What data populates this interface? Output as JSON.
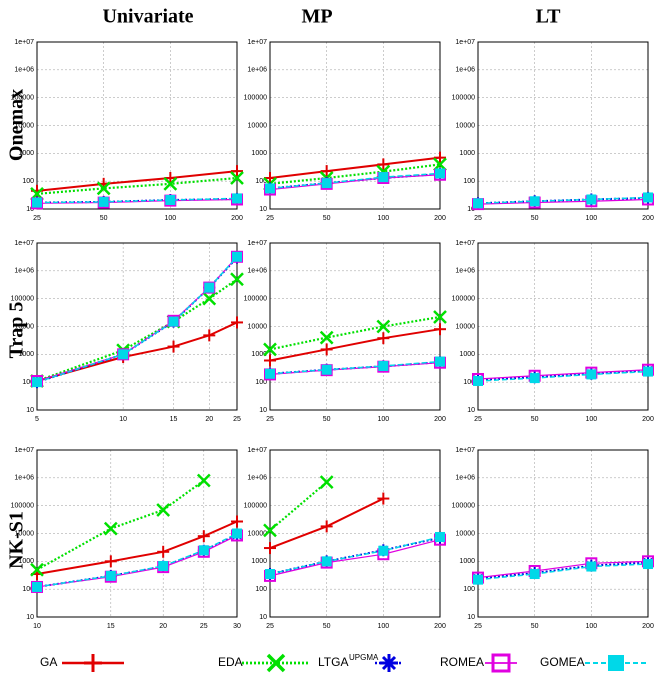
{
  "column_titles": [
    "Univariate",
    "MP",
    "LT"
  ],
  "row_titles": [
    "Onemax",
    "Trap 5",
    "NK-S1"
  ],
  "chart_data": [
    {
      "type": "line",
      "x": [
        25,
        50,
        100,
        200
      ],
      "xlim": [
        25,
        200
      ],
      "xticks": [
        25,
        50,
        100,
        200
      ],
      "xscale": "log",
      "yscale": "log",
      "ylim": [
        10,
        10000000
      ],
      "yticks": [
        10,
        100,
        1000,
        10000,
        100000,
        {
          "value": 1000000,
          "label": "1e+06"
        },
        {
          "value": 10000000,
          "label": "1e+07"
        }
      ],
      "grid": true,
      "series": [
        {
          "name": "GA",
          "color": "#e00000",
          "marker": "plus",
          "linestyle": "solid",
          "values": [
            45,
            80,
            130,
            230
          ]
        },
        {
          "name": "EDA",
          "color": "#00e000",
          "marker": "x",
          "linestyle": "dotted",
          "values": [
            35,
            55,
            80,
            130
          ]
        },
        {
          "name": "LTGA",
          "name_sup": "UPGMA",
          "color": "#0000e0",
          "marker": "star",
          "linestyle": "dotted",
          "values": [
            17,
            18,
            21,
            23
          ]
        },
        {
          "name": "ROMEA",
          "color": "#e000e0",
          "marker": "square",
          "linestyle": "solid",
          "values": [
            16,
            17,
            20,
            22
          ]
        },
        {
          "name": "GOMEA",
          "color": "#00d8e8",
          "marker": "filled-square",
          "linestyle": "dashed",
          "values": [
            17,
            18,
            21,
            24
          ]
        }
      ]
    },
    {
      "type": "line",
      "x": [
        25,
        50,
        100,
        200
      ],
      "xlim": [
        25,
        200
      ],
      "xticks": [
        25,
        50,
        100,
        200
      ],
      "xscale": "log",
      "yscale": "log",
      "ylim": [
        10,
        10000000
      ],
      "yticks": [
        10,
        100,
        1000,
        10000,
        100000,
        {
          "value": 1000000,
          "label": "1e+06"
        },
        {
          "value": 10000000,
          "label": "1e+07"
        }
      ],
      "grid": true,
      "series": [
        {
          "name": "GA",
          "color": "#e00000",
          "marker": "plus",
          "linestyle": "solid",
          "values": [
            130,
            230,
            400,
            700
          ]
        },
        {
          "name": "EDA",
          "color": "#00e000",
          "marker": "x",
          "linestyle": "dotted",
          "values": [
            80,
            130,
            220,
            400
          ]
        },
        {
          "name": "LTGA",
          "color": "#0000e0",
          "marker": "star",
          "linestyle": "dotted",
          "values": [
            55,
            85,
            130,
            180
          ]
        },
        {
          "name": "ROMEA",
          "color": "#e000e0",
          "marker": "square",
          "linestyle": "solid",
          "values": [
            50,
            80,
            130,
            170
          ]
        },
        {
          "name": "GOMEA",
          "color": "#00d8e8",
          "marker": "filled-square",
          "linestyle": "dashed",
          "values": [
            55,
            85,
            140,
            190
          ]
        }
      ]
    },
    {
      "type": "line",
      "x": [
        25,
        50,
        100,
        200
      ],
      "xlim": [
        25,
        200
      ],
      "xticks": [
        25,
        50,
        100,
        200
      ],
      "xscale": "log",
      "yscale": "log",
      "ylim": [
        10,
        10000000
      ],
      "yticks": [
        10,
        100,
        1000,
        10000,
        100000,
        {
          "value": 1000000,
          "label": "1e+06"
        },
        {
          "value": 10000000,
          "label": "1e+07"
        }
      ],
      "grid": true,
      "series": [
        {
          "name": "GA",
          "color": "#e00000",
          "marker": "plus",
          "linestyle": "solid",
          "values": [
            null,
            null,
            null,
            null
          ]
        },
        {
          "name": "EDA",
          "color": "#00e000",
          "marker": "x",
          "linestyle": "dotted",
          "values": [
            null,
            null,
            null,
            null
          ]
        },
        {
          "name": "LTGA",
          "color": "#0000e0",
          "marker": "star",
          "linestyle": "dotted",
          "values": [
            16,
            19,
            22,
            25
          ]
        },
        {
          "name": "ROMEA",
          "color": "#e000e0",
          "marker": "square",
          "linestyle": "solid",
          "values": [
            15,
            17,
            19,
            22
          ]
        },
        {
          "name": "GOMEA",
          "color": "#00d8e8",
          "marker": "filled-square",
          "linestyle": "dashed",
          "values": [
            16,
            19,
            22,
            26
          ]
        }
      ]
    },
    {
      "type": "line",
      "x": [
        5,
        10,
        15,
        20,
        25
      ],
      "xlim": [
        5,
        25
      ],
      "xticks": [
        5,
        10,
        15,
        20,
        25
      ],
      "xscale": "log",
      "yscale": "log",
      "ylim": [
        10,
        10000000
      ],
      "yticks": [
        10,
        100,
        1000,
        10000,
        100000,
        {
          "value": 1000000,
          "label": "1e+06"
        },
        {
          "value": 10000000,
          "label": "1e+07"
        }
      ],
      "grid": true,
      "series": [
        {
          "name": "GA",
          "color": "#e00000",
          "marker": "plus",
          "linestyle": "solid",
          "values": [
            110,
            800,
            1900,
            4800,
            14000
          ]
        },
        {
          "name": "EDA",
          "color": "#00e000",
          "marker": "x",
          "linestyle": "dotted",
          "values": [
            110,
            1400,
            15000,
            100000,
            500000
          ]
        },
        {
          "name": "LTGA",
          "color": "#0000e0",
          "marker": "star",
          "linestyle": "dotted",
          "values": [
            100,
            1000,
            15000,
            250000,
            3000000
          ]
        },
        {
          "name": "ROMEA",
          "color": "#e000e0",
          "marker": "square",
          "linestyle": "solid",
          "values": [
            110,
            1000,
            16000,
            250000,
            3200000
          ]
        },
        {
          "name": "GOMEA",
          "color": "#00d8e8",
          "marker": "filled-square",
          "linestyle": "dashed",
          "values": [
            100,
            1000,
            15000,
            250000,
            3200000
          ]
        }
      ]
    },
    {
      "type": "line",
      "x": [
        25,
        50,
        100,
        200
      ],
      "xlim": [
        25,
        200
      ],
      "xticks": [
        25,
        50,
        100,
        200
      ],
      "xscale": "log",
      "yscale": "log",
      "ylim": [
        10,
        10000000
      ],
      "yticks": [
        10,
        100,
        1000,
        10000,
        100000,
        {
          "value": 1000000,
          "label": "1e+06"
        },
        {
          "value": 10000000,
          "label": "1e+07"
        }
      ],
      "grid": true,
      "series": [
        {
          "name": "GA",
          "color": "#e00000",
          "marker": "plus",
          "linestyle": "solid",
          "values": [
            600,
            1500,
            3800,
            8000
          ]
        },
        {
          "name": "EDA",
          "color": "#00e000",
          "marker": "x",
          "linestyle": "dotted",
          "values": [
            1500,
            4000,
            10000,
            22000
          ]
        },
        {
          "name": "LTGA",
          "color": "#0000e0",
          "marker": "star",
          "linestyle": "dotted",
          "values": [
            200,
            280,
            370,
            520
          ]
        },
        {
          "name": "ROMEA",
          "color": "#e000e0",
          "marker": "square",
          "linestyle": "solid",
          "values": [
            190,
            270,
            360,
            500
          ]
        },
        {
          "name": "GOMEA",
          "color": "#00d8e8",
          "marker": "filled-square",
          "linestyle": "dashed",
          "values": [
            200,
            280,
            380,
            550
          ]
        }
      ]
    },
    {
      "type": "line",
      "x": [
        25,
        50,
        100,
        200
      ],
      "xlim": [
        25,
        200
      ],
      "xticks": [
        25,
        50,
        100,
        200
      ],
      "xscale": "log",
      "yscale": "log",
      "ylim": [
        10,
        10000000
      ],
      "yticks": [
        10,
        100,
        1000,
        10000,
        100000,
        {
          "value": 1000000,
          "label": "1e+06"
        },
        {
          "value": 10000000,
          "label": "1e+07"
        }
      ],
      "grid": true,
      "series": [
        {
          "name": "GA",
          "color": "#e00000",
          "marker": "plus",
          "linestyle": "solid",
          "values": [
            null,
            null,
            null,
            null
          ]
        },
        {
          "name": "EDA",
          "color": "#00e000",
          "marker": "x",
          "linestyle": "dotted",
          "values": [
            null,
            null,
            null,
            null
          ]
        },
        {
          "name": "LTGA",
          "color": "#0000e0",
          "marker": "star",
          "linestyle": "dotted",
          "values": [
            120,
            150,
            200,
            260
          ]
        },
        {
          "name": "ROMEA",
          "color": "#e000e0",
          "marker": "square",
          "linestyle": "solid",
          "values": [
            130,
            170,
            220,
            280
          ]
        },
        {
          "name": "GOMEA",
          "color": "#00d8e8",
          "marker": "filled-square",
          "linestyle": "dashed",
          "values": [
            110,
            140,
            190,
            240
          ]
        }
      ]
    },
    {
      "type": "line",
      "x": [
        10,
        15,
        20,
        25,
        30
      ],
      "xlim": [
        10,
        30
      ],
      "xticks": [
        10,
        15,
        20,
        25,
        30
      ],
      "xscale": "log",
      "yscale": "log",
      "ylim": [
        10,
        10000000
      ],
      "yticks": [
        10,
        100,
        1000,
        10000,
        100000,
        {
          "value": 1000000,
          "label": "1e+06"
        },
        {
          "value": 10000000,
          "label": "1e+07"
        }
      ],
      "grid": true,
      "series": [
        {
          "name": "GA",
          "color": "#e00000",
          "marker": "plus",
          "linestyle": "solid",
          "values": [
            350,
            1000,
            2200,
            8000,
            27000
          ]
        },
        {
          "name": "EDA",
          "color": "#00e000",
          "marker": "x",
          "linestyle": "dotted",
          "values": [
            500,
            15000,
            70000,
            800000,
            null
          ]
        },
        {
          "name": "LTGA",
          "color": "#0000e0",
          "marker": "star",
          "linestyle": "dotted",
          "values": [
            120,
            300,
            650,
            2400,
            9000
          ]
        },
        {
          "name": "ROMEA",
          "color": "#e000e0",
          "marker": "square",
          "linestyle": "solid",
          "values": [
            120,
            280,
            620,
            2200,
            8500
          ]
        },
        {
          "name": "GOMEA",
          "color": "#00d8e8",
          "marker": "filled-square",
          "linestyle": "dashed",
          "values": [
            120,
            300,
            680,
            2500,
            10000
          ]
        }
      ]
    },
    {
      "type": "line",
      "x": [
        25,
        50,
        100,
        200
      ],
      "xlim": [
        25,
        200
      ],
      "xticks": [
        25,
        50,
        100,
        200
      ],
      "xscale": "log",
      "yscale": "log",
      "ylim": [
        10,
        10000000
      ],
      "yticks": [
        10,
        100,
        1000,
        10000,
        100000,
        {
          "value": 1000000,
          "label": "1e+06"
        },
        {
          "value": 10000000,
          "label": "1e+07"
        }
      ],
      "grid": true,
      "series": [
        {
          "name": "GA",
          "color": "#e00000",
          "marker": "plus",
          "linestyle": "solid",
          "values": [
            3000,
            18000,
            180000,
            null
          ]
        },
        {
          "name": "EDA",
          "color": "#00e000",
          "marker": "x",
          "linestyle": "dotted",
          "values": [
            13000,
            700000,
            null,
            null
          ]
        },
        {
          "name": "LTGA",
          "color": "#0000e0",
          "marker": "star",
          "linestyle": "dotted",
          "values": [
            350,
            1000,
            2500,
            7000
          ]
        },
        {
          "name": "ROMEA",
          "color": "#e000e0",
          "marker": "square",
          "linestyle": "solid",
          "values": [
            300,
            900,
            1800,
            6000
          ]
        },
        {
          "name": "GOMEA",
          "color": "#00d8e8",
          "marker": "filled-square",
          "linestyle": "dashed",
          "values": [
            350,
            1000,
            2400,
            7500
          ]
        }
      ]
    },
    {
      "type": "line",
      "x": [
        25,
        50,
        100,
        200
      ],
      "xlim": [
        25,
        200
      ],
      "xticks": [
        25,
        50,
        100,
        200
      ],
      "xscale": "log",
      "yscale": "log",
      "ylim": [
        10,
        10000000
      ],
      "yticks": [
        10,
        100,
        1000,
        10000,
        100000,
        {
          "value": 1000000,
          "label": "1e+06"
        },
        {
          "value": 10000000,
          "label": "1e+07"
        }
      ],
      "grid": true,
      "series": [
        {
          "name": "GA",
          "color": "#e00000",
          "marker": "plus",
          "linestyle": "solid",
          "values": [
            null,
            null,
            null,
            null
          ]
        },
        {
          "name": "EDA",
          "color": "#00e000",
          "marker": "x",
          "linestyle": "dotted",
          "values": [
            null,
            null,
            null,
            null
          ]
        },
        {
          "name": "LTGA",
          "color": "#0000e0",
          "marker": "star",
          "linestyle": "dotted",
          "values": [
            240,
            380,
            700,
            900
          ]
        },
        {
          "name": "ROMEA",
          "color": "#e000e0",
          "marker": "square",
          "linestyle": "solid",
          "values": [
            260,
            450,
            850,
            1000
          ]
        },
        {
          "name": "GOMEA",
          "color": "#00d8e8",
          "marker": "filled-square",
          "linestyle": "dashed",
          "values": [
            220,
            350,
            650,
            800
          ]
        }
      ]
    }
  ]
}
